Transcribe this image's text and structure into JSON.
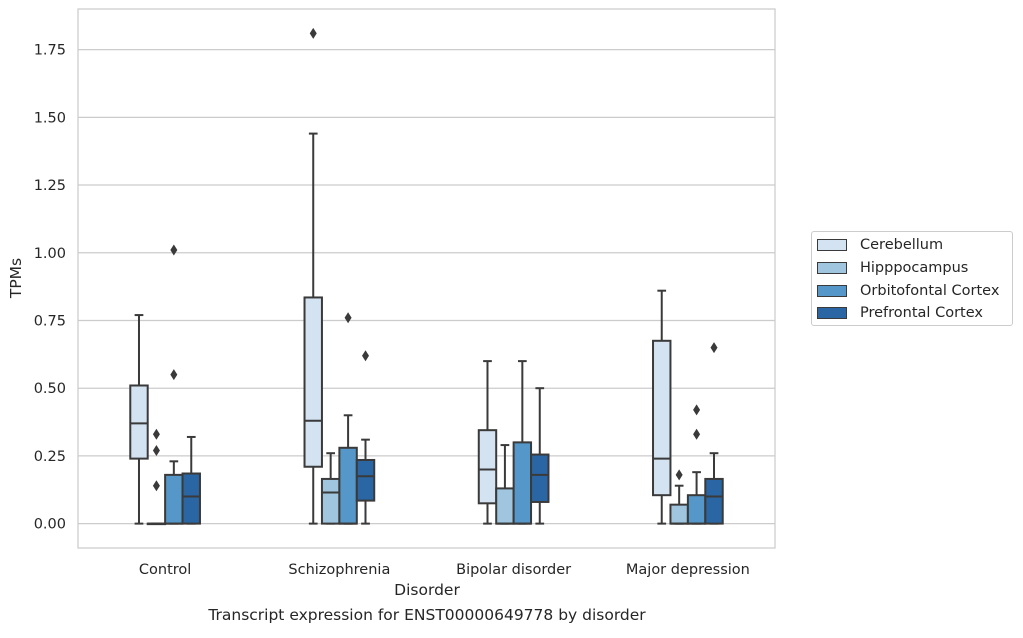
{
  "chart_data": {
    "type": "boxplot",
    "xlabel": "Disorder",
    "ylabel": "TPMs",
    "caption": "Transcript expression for ENST00000649778 by disorder",
    "ylim": [
      -0.09,
      1.9
    ],
    "yticks": [
      0.0,
      0.25,
      0.5,
      0.75,
      1.0,
      1.25,
      1.5,
      1.75
    ],
    "ytick_labels": [
      "0.00",
      "0.25",
      "0.50",
      "0.75",
      "1.00",
      "1.25",
      "1.50",
      "1.75"
    ],
    "grid": "horizontal",
    "legend_position": "right",
    "categories": [
      "Control",
      "Schizophrenia",
      "Bipolar disorder",
      "Major depression"
    ],
    "series": [
      {
        "name": "Cerebellum",
        "color": "#d4e3f2",
        "boxes": [
          {
            "whisker_low": 0.0,
            "q1": 0.24,
            "median": 0.37,
            "q3": 0.51,
            "whisker_high": 0.77,
            "outliers": []
          },
          {
            "whisker_low": 0.0,
            "q1": 0.21,
            "median": 0.38,
            "q3": 0.835,
            "whisker_high": 1.44,
            "outliers": [
              1.81
            ]
          },
          {
            "whisker_low": 0.0,
            "q1": 0.075,
            "median": 0.2,
            "q3": 0.345,
            "whisker_high": 0.6,
            "outliers": []
          },
          {
            "whisker_low": 0.0,
            "q1": 0.105,
            "median": 0.24,
            "q3": 0.675,
            "whisker_high": 0.86,
            "outliers": []
          }
        ]
      },
      {
        "name": "Hipppocampus",
        "color": "#9fc5df",
        "boxes": [
          {
            "whisker_low": 0.0,
            "q1": 0.0,
            "median": 0.0,
            "q3": 0.0,
            "whisker_high": 0.0,
            "outliers": [
              0.14,
              0.27,
              0.33
            ]
          },
          {
            "whisker_low": 0.0,
            "q1": 0.0,
            "median": 0.115,
            "q3": 0.165,
            "whisker_high": 0.26,
            "outliers": []
          },
          {
            "whisker_low": 0.0,
            "q1": 0.0,
            "median": 0.0,
            "q3": 0.13,
            "whisker_high": 0.29,
            "outliers": []
          },
          {
            "whisker_low": 0.0,
            "q1": 0.0,
            "median": 0.0,
            "q3": 0.07,
            "whisker_high": 0.14,
            "outliers": [
              0.18
            ]
          }
        ]
      },
      {
        "name": "Orbitofontal Cortex",
        "color": "#5597c9",
        "boxes": [
          {
            "whisker_low": 0.0,
            "q1": 0.0,
            "median": 0.0,
            "q3": 0.18,
            "whisker_high": 0.23,
            "outliers": [
              0.55,
              1.01
            ]
          },
          {
            "whisker_low": 0.0,
            "q1": 0.0,
            "median": 0.0,
            "q3": 0.28,
            "whisker_high": 0.4,
            "outliers": [
              0.76
            ]
          },
          {
            "whisker_low": 0.0,
            "q1": 0.0,
            "median": 0.0,
            "q3": 0.3,
            "whisker_high": 0.6,
            "outliers": []
          },
          {
            "whisker_low": 0.0,
            "q1": 0.0,
            "median": 0.0,
            "q3": 0.105,
            "whisker_high": 0.19,
            "outliers": [
              0.33,
              0.42
            ]
          }
        ]
      },
      {
        "name": "Prefrontal Cortex",
        "color": "#2a66a3",
        "boxes": [
          {
            "whisker_low": 0.0,
            "q1": 0.0,
            "median": 0.1,
            "q3": 0.185,
            "whisker_high": 0.32,
            "outliers": []
          },
          {
            "whisker_low": 0.0,
            "q1": 0.085,
            "median": 0.175,
            "q3": 0.235,
            "whisker_high": 0.31,
            "outliers": [
              0.62
            ]
          },
          {
            "whisker_low": 0.0,
            "q1": 0.08,
            "median": 0.18,
            "q3": 0.255,
            "whisker_high": 0.5,
            "outliers": []
          },
          {
            "whisker_low": 0.0,
            "q1": 0.0,
            "median": 0.1,
            "q3": 0.165,
            "whisker_high": 0.26,
            "outliers": [
              0.65
            ]
          }
        ]
      }
    ]
  }
}
